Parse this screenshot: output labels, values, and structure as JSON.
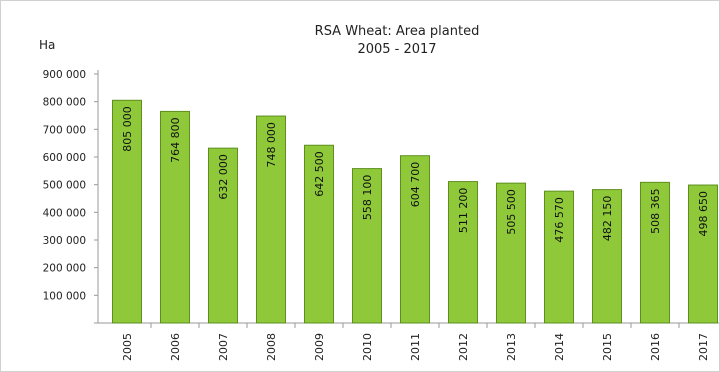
{
  "chart_data": {
    "type": "bar",
    "title": "RSA Wheat: Area planted",
    "subtitle": "2005 - 2017",
    "ylabel": "Ha",
    "xlabel": "",
    "ylim": [
      0,
      900000
    ],
    "yticks": [
      "100 000",
      "200 000",
      "300 000",
      "400 000",
      "500 000",
      "600 000",
      "700 000",
      "800 000",
      "900 000"
    ],
    "grid": false,
    "legend": "none",
    "bar_color": "#8fc93a",
    "bar_edge_color": "#5e8f1e",
    "categories": [
      "2005",
      "2006",
      "2007",
      "2008",
      "2009",
      "2010",
      "2011",
      "2012",
      "2013",
      "2014",
      "2015",
      "2016",
      "2017"
    ],
    "values": [
      805000,
      764800,
      632000,
      748000,
      642500,
      558100,
      604700,
      511200,
      505500,
      476570,
      482150,
      508365,
      498650
    ],
    "data_labels": [
      "805 000",
      "764 800",
      "632 000",
      "748 000",
      "642 500",
      "558 100",
      "604 700",
      "511 200",
      "505 500",
      "476 570",
      "482 150",
      "508 365",
      "498 650"
    ]
  }
}
